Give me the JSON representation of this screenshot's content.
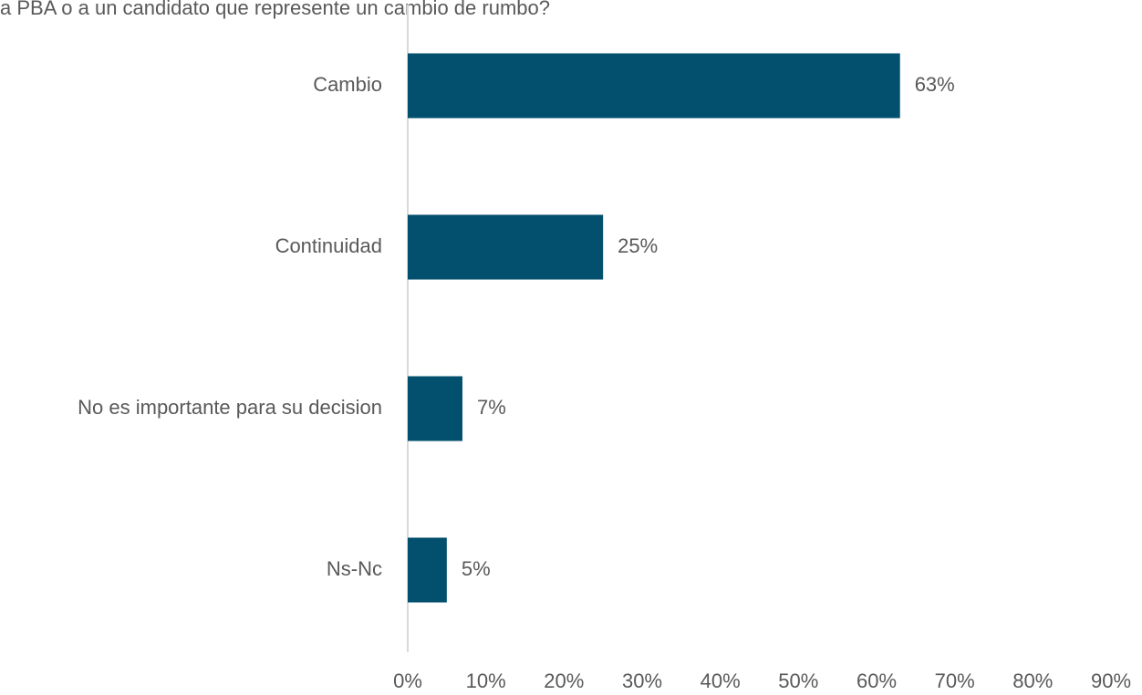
{
  "chart_data": {
    "type": "bar",
    "orientation": "horizontal",
    "title": "a PBA o a un candidato que represente un cambio de rumbo?",
    "categories": [
      "Cambio",
      "Continuidad",
      "No es importante para su decision",
      "Ns-Nc"
    ],
    "values": [
      63,
      25,
      7,
      5
    ],
    "value_labels": [
      "63%",
      "25%",
      "7%",
      "5%"
    ],
    "color": "#034f6e",
    "xlim": [
      0,
      90
    ],
    "xticks": [
      {
        "value": 0,
        "label": "0%"
      },
      {
        "value": 10,
        "label": "10%"
      },
      {
        "value": 20,
        "label": "20%"
      },
      {
        "value": 30,
        "label": "30%"
      },
      {
        "value": 40,
        "label": "40%"
      },
      {
        "value": 50,
        "label": "50%"
      },
      {
        "value": 60,
        "label": "60%"
      },
      {
        "value": 70,
        "label": "70%"
      },
      {
        "value": 80,
        "label": "80%"
      },
      {
        "value": 90,
        "label": "90%"
      }
    ],
    "grid": false
  }
}
